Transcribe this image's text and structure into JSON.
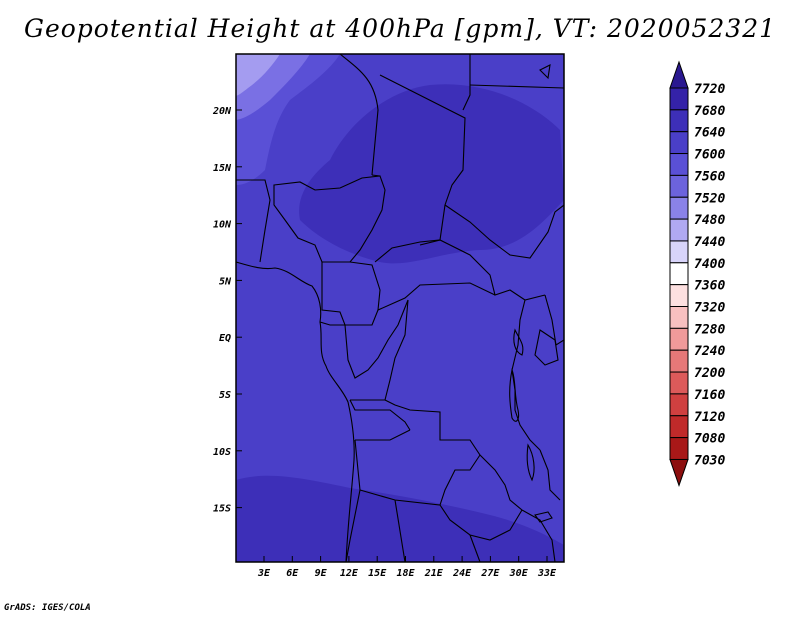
{
  "title": "Geopotential Height at 400hPa [gpm], VT: 2020052321",
  "footer": "GrADS: IGES/COLA",
  "map": {
    "lat_labels": [
      "20N",
      "15N",
      "10N",
      "5N",
      "EQ",
      "5S",
      "10S",
      "15S"
    ],
    "lon_labels": [
      "3E",
      "6E",
      "9E",
      "12E",
      "15E",
      "18E",
      "21E",
      "24E",
      "27E",
      "30E",
      "33E"
    ],
    "field_colors": {
      "base": "#4a3fc8",
      "higher": "#3d2fb8",
      "lower_mid": "#5a50d6",
      "lower": "#7a70e4",
      "lowest": "#a49cf0"
    }
  },
  "colorbar": {
    "levels": [
      "7720",
      "7680",
      "7640",
      "7600",
      "7560",
      "7520",
      "7480",
      "7440",
      "7400",
      "7360",
      "7320",
      "7280",
      "7240",
      "7200",
      "7160",
      "7120",
      "7080",
      "7030"
    ],
    "colors": [
      "#2a1890",
      "#3422a8",
      "#3d2fb8",
      "#4a3fc8",
      "#5a50d6",
      "#6c63dd",
      "#8a82e8",
      "#b0a9f2",
      "#d8d4fa",
      "#ffffff",
      "#fde0e0",
      "#f8c0c0",
      "#f09a9a",
      "#e67878",
      "#dc5a5a",
      "#d04040",
      "#c02a2a",
      "#a81818",
      "#8c0e0e"
    ]
  }
}
